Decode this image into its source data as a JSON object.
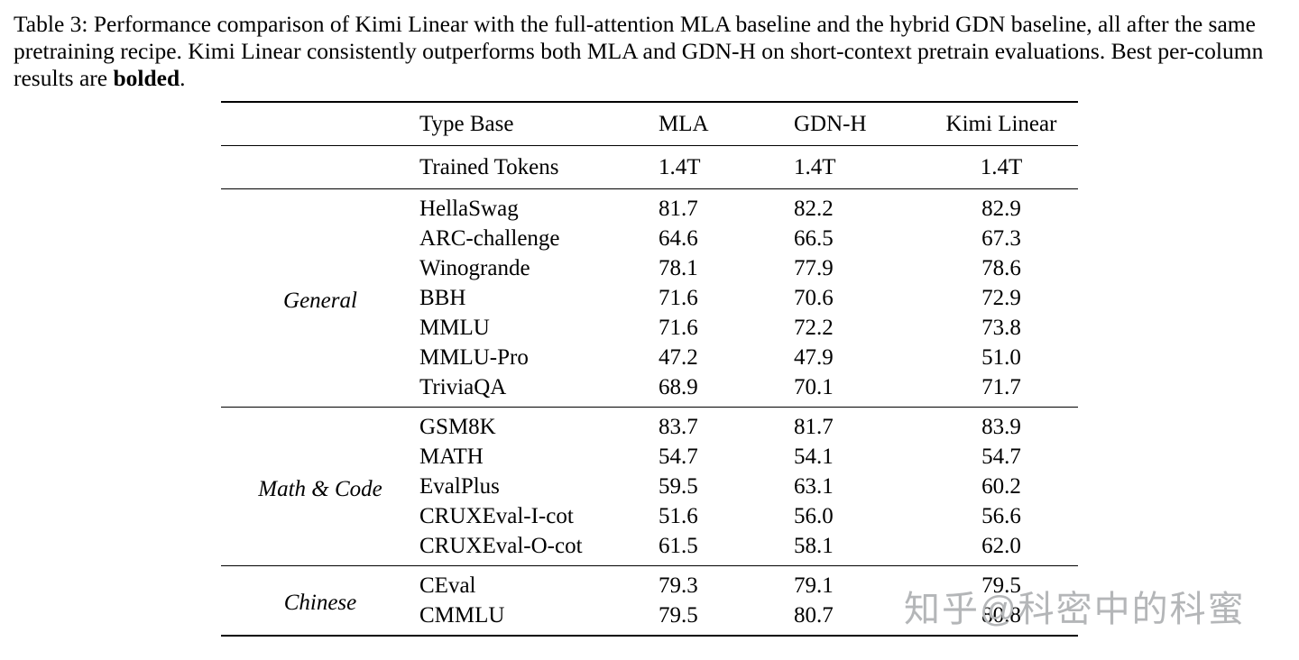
{
  "caption": {
    "text_before": "Table 3: Performance comparison of Kimi Linear with the full-attention MLA baseline and the hybrid GDN baseline, all after the same pretraining recipe. Kimi Linear consistently outperforms both MLA and GDN-H on short-context pretrain evaluations. Best per-column results are ",
    "bold_word": "bolded",
    "text_after": "."
  },
  "table": {
    "headers": {
      "type_base": "Type Base",
      "mla": "MLA",
      "gdnh": "GDN-H",
      "kimi": "Kimi Linear"
    },
    "trained_tokens": {
      "name": "Trained Tokens",
      "mla": "1.4T",
      "gdnh": "1.4T",
      "kimi": "1.4T"
    },
    "groups": [
      {
        "label": "General",
        "rows": [
          {
            "name": "HellaSwag",
            "mla": "81.7",
            "gdnh": "82.2",
            "kimi": "82.9"
          },
          {
            "name": "ARC-challenge",
            "mla": "64.6",
            "gdnh": "66.5",
            "kimi": "67.3"
          },
          {
            "name": "Winogrande",
            "mla": "78.1",
            "gdnh": "77.9",
            "kimi": "78.6"
          },
          {
            "name": "BBH",
            "mla": "71.6",
            "gdnh": "70.6",
            "kimi": "72.9"
          },
          {
            "name": "MMLU",
            "mla": "71.6",
            "gdnh": "72.2",
            "kimi": "73.8"
          },
          {
            "name": "MMLU-Pro",
            "mla": "47.2",
            "gdnh": "47.9",
            "kimi": "51.0"
          },
          {
            "name": "TriviaQA",
            "mla": "68.9",
            "gdnh": "70.1",
            "kimi": "71.7"
          }
        ]
      },
      {
        "label": "Math & Code",
        "rows": [
          {
            "name": "GSM8K",
            "mla": "83.7",
            "gdnh": "81.7",
            "kimi": "83.9"
          },
          {
            "name": "MATH",
            "mla": "54.7",
            "gdnh": "54.1",
            "kimi": "54.7"
          },
          {
            "name": "EvalPlus",
            "mla": "59.5",
            "gdnh": "63.1",
            "kimi": "60.2"
          },
          {
            "name": "CRUXEval-I-cot",
            "mla": "51.6",
            "gdnh": "56.0",
            "kimi": "56.6"
          },
          {
            "name": "CRUXEval-O-cot",
            "mla": "61.5",
            "gdnh": "58.1",
            "kimi": "62.0"
          }
        ]
      },
      {
        "label": "Chinese",
        "rows": [
          {
            "name": "CEval",
            "mla": "79.3",
            "gdnh": "79.1",
            "kimi": "79.5"
          },
          {
            "name": "CMMLU",
            "mla": "79.5",
            "gdnh": "80.7",
            "kimi": "80.8"
          }
        ]
      }
    ]
  },
  "watermark": {
    "text": "知乎@科密中的科蜜",
    "color": "#b4b6b8"
  },
  "chart_data": {
    "type": "table",
    "title": "Table 3: Performance comparison of Kimi Linear vs MLA baseline and hybrid GDN baseline",
    "columns": [
      "Type Base",
      "MLA",
      "GDN-H",
      "Kimi Linear"
    ],
    "rows": [
      [
        "Trained Tokens",
        "1.4T",
        "1.4T",
        "1.4T"
      ],
      [
        "HellaSwag",
        81.7,
        82.2,
        82.9
      ],
      [
        "ARC-challenge",
        64.6,
        66.5,
        67.3
      ],
      [
        "Winogrande",
        78.1,
        77.9,
        78.6
      ],
      [
        "BBH",
        71.6,
        70.6,
        72.9
      ],
      [
        "MMLU",
        71.6,
        72.2,
        73.8
      ],
      [
        "MMLU-Pro",
        47.2,
        47.9,
        51.0
      ],
      [
        "TriviaQA",
        68.9,
        70.1,
        71.7
      ],
      [
        "GSM8K",
        83.7,
        81.7,
        83.9
      ],
      [
        "MATH",
        54.7,
        54.1,
        54.7
      ],
      [
        "EvalPlus",
        59.5,
        63.1,
        60.2
      ],
      [
        "CRUXEval-I-cot",
        51.6,
        56.0,
        56.6
      ],
      [
        "CRUXEval-O-cot",
        61.5,
        58.1,
        62.0
      ],
      [
        "CEval",
        79.3,
        79.1,
        79.5
      ],
      [
        "CMMLU",
        79.5,
        80.7,
        80.8
      ]
    ],
    "row_groups": {
      "General": [
        1,
        7
      ],
      "Math & Code": [
        8,
        12
      ],
      "Chinese": [
        13,
        14
      ]
    },
    "bold_best": {
      "MATH": [
        "MLA",
        "Kimi Linear"
      ],
      "EvalPlus": [
        "GDN-H"
      ],
      "default_best_column": "Kimi Linear"
    }
  }
}
